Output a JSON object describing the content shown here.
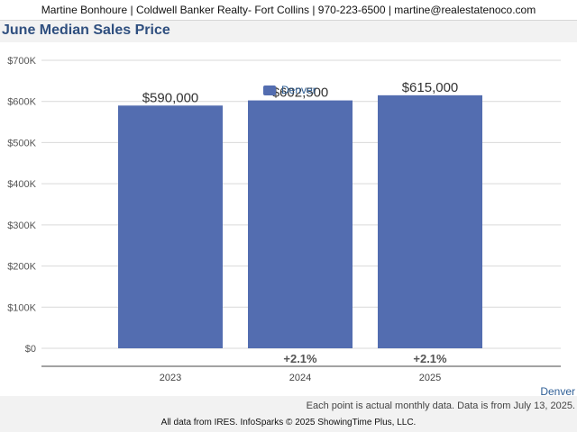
{
  "header": {
    "contact": "Martine Bonhoure | Coldwell Banker Realty- Fort Collins | 970-223-6500 | martine@realestatenoco.com"
  },
  "chart_data": {
    "type": "bar",
    "title": "June Median Sales Price",
    "xlabel": "",
    "ylabel": "",
    "categories": [
      "2023",
      "2024",
      "2025"
    ],
    "series": [
      {
        "name": "Denver",
        "values": [
          590000,
          602500,
          615000
        ],
        "value_labels": [
          "$590,000",
          "$602,500",
          "$615,000"
        ],
        "change_labels": [
          "",
          "+2.1%",
          "+2.1%"
        ]
      }
    ],
    "ylim": [
      0,
      700000
    ],
    "yticks": [
      0,
      100000,
      200000,
      300000,
      400000,
      500000,
      600000,
      700000
    ],
    "ytick_labels": [
      "$0",
      "$100K",
      "$200K",
      "$300K",
      "$400K",
      "$500K",
      "$600K",
      "$700K"
    ],
    "grid": true,
    "legend_position": "top-center",
    "bar_color": "#536db0"
  },
  "notes": {
    "series_label": "Denver",
    "data_note": "Each point is actual monthly data. Data is from July 13, 2025."
  },
  "footer": {
    "text": "All data from IRES. InfoSparks © 2025 ShowingTime Plus, LLC."
  }
}
